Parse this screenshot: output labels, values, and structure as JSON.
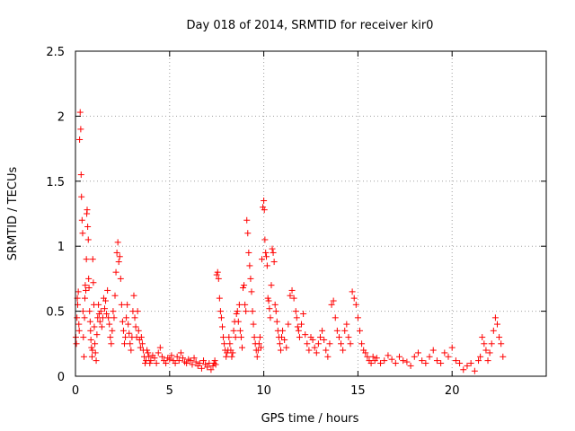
{
  "chart_data": {
    "type": "scatter",
    "title": "Day 018 of 2014, SRMTID for receiver kir0",
    "xlabel": "GPS time / hours",
    "ylabel": "SRMTID / TECUs",
    "xlim": [
      0,
      25
    ],
    "ylim": [
      0,
      2.5
    ],
    "xticks": [
      0,
      5,
      10,
      15,
      20
    ],
    "xtick_labels": [
      "0",
      "5",
      "10",
      "15",
      "20"
    ],
    "yticks": [
      0,
      0.5,
      1,
      1.5,
      2,
      2.5
    ],
    "ytick_labels": [
      "0",
      "0.5",
      "1",
      "1.5",
      "2",
      "2.5"
    ],
    "grid": true,
    "marker": "+",
    "color": "#ff0000",
    "series": [
      {
        "name": "SRMTID",
        "x": [
          0.02,
          0.05,
          0.08,
          0.1,
          0.12,
          0.15,
          0.18,
          0.2,
          0.22,
          0.25,
          0.28,
          0.3,
          0.32,
          0.35,
          0.38,
          0.4,
          0.42,
          0.45,
          0.48,
          0.5,
          0.52,
          0.55,
          0.58,
          0.6,
          0.62,
          0.65,
          0.68,
          0.7,
          0.72,
          0.75,
          0.78,
          0.8,
          0.82,
          0.85,
          0.88,
          0.9,
          0.92,
          0.95,
          0.98,
          1.0,
          1.03,
          1.06,
          1.1,
          1.14,
          1.18,
          1.22,
          1.26,
          1.3,
          1.35,
          1.4,
          1.45,
          1.5,
          1.55,
          1.6,
          1.65,
          1.7,
          1.75,
          1.8,
          1.85,
          1.9,
          1.95,
          2.0,
          2.05,
          2.1,
          2.15,
          2.2,
          2.25,
          2.3,
          2.35,
          2.4,
          2.45,
          2.5,
          2.55,
          2.6,
          2.65,
          2.7,
          2.75,
          2.8,
          2.85,
          2.9,
          2.95,
          3.0,
          3.05,
          3.1,
          3.15,
          3.2,
          3.25,
          3.3,
          3.35,
          3.4,
          3.45,
          3.5,
          3.55,
          3.6,
          3.65,
          3.7,
          3.75,
          3.8,
          3.85,
          3.9,
          3.95,
          4.0,
          4.1,
          4.2,
          4.3,
          4.4,
          4.5,
          4.6,
          4.7,
          4.8,
          4.9,
          5.0,
          5.1,
          5.2,
          5.3,
          5.4,
          5.5,
          5.6,
          5.7,
          5.8,
          5.9,
          6.0,
          6.1,
          6.2,
          6.3,
          6.4,
          6.5,
          6.6,
          6.7,
          6.8,
          6.9,
          7.0,
          7.1,
          7.2,
          7.3,
          7.35,
          7.4,
          7.45,
          7.5,
          7.55,
          7.6,
          7.65,
          7.7,
          7.75,
          7.8,
          7.85,
          7.9,
          7.95,
          8.0,
          8.05,
          8.1,
          8.15,
          8.2,
          8.25,
          8.3,
          8.35,
          8.4,
          8.45,
          8.5,
          8.55,
          8.6,
          8.65,
          8.7,
          8.75,
          8.8,
          8.85,
          8.9,
          8.95,
          9.0,
          9.05,
          9.1,
          9.15,
          9.2,
          9.25,
          9.3,
          9.35,
          9.4,
          9.45,
          9.5,
          9.55,
          9.6,
          9.65,
          9.7,
          9.75,
          9.8,
          9.85,
          9.9,
          9.95,
          10.0,
          10.03,
          10.06,
          10.1,
          10.14,
          10.18,
          10.22,
          10.26,
          10.3,
          10.35,
          10.4,
          10.45,
          10.5,
          10.55,
          10.6,
          10.65,
          10.7,
          10.75,
          10.8,
          10.85,
          10.9,
          10.95,
          11.0,
          11.1,
          11.2,
          11.3,
          11.4,
          11.5,
          11.6,
          11.7,
          11.75,
          11.8,
          11.85,
          11.9,
          12.0,
          12.1,
          12.2,
          12.3,
          12.4,
          12.5,
          12.6,
          12.7,
          12.8,
          12.9,
          13.0,
          13.1,
          13.2,
          13.3,
          13.4,
          13.5,
          13.6,
          13.7,
          13.8,
          13.9,
          14.0,
          14.1,
          14.2,
          14.3,
          14.4,
          14.5,
          14.6,
          14.7,
          14.8,
          14.9,
          15.0,
          15.1,
          15.2,
          15.3,
          15.4,
          15.5,
          15.6,
          15.7,
          15.8,
          15.9,
          16.0,
          16.2,
          16.4,
          16.6,
          16.8,
          17.0,
          17.2,
          17.4,
          17.6,
          17.8,
          18.0,
          18.2,
          18.4,
          18.6,
          18.8,
          19.0,
          19.2,
          19.4,
          19.6,
          19.8,
          20.0,
          20.2,
          20.4,
          20.6,
          20.8,
          21.0,
          21.2,
          21.4,
          21.5,
          21.6,
          21.7,
          21.8,
          21.9,
          22.0,
          22.1,
          22.2,
          22.3,
          22.4,
          22.5,
          22.6,
          22.7
        ],
        "y": [
          0.3,
          0.25,
          0.45,
          0.6,
          0.55,
          0.65,
          0.4,
          0.35,
          1.82,
          2.03,
          1.9,
          1.55,
          1.38,
          1.2,
          1.1,
          0.5,
          0.3,
          0.15,
          0.45,
          0.6,
          0.7,
          0.66,
          0.9,
          1.25,
          1.28,
          1.15,
          1.05,
          0.75,
          0.68,
          0.5,
          0.42,
          0.35,
          0.28,
          0.22,
          0.15,
          0.2,
          0.9,
          0.72,
          0.55,
          0.38,
          0.25,
          0.18,
          0.12,
          0.32,
          0.45,
          0.55,
          0.48,
          0.42,
          0.5,
          0.38,
          0.45,
          0.6,
          0.52,
          0.58,
          0.48,
          0.66,
          0.45,
          0.4,
          0.3,
          0.25,
          0.35,
          0.5,
          0.45,
          0.62,
          0.8,
          0.95,
          1.03,
          0.88,
          0.92,
          0.75,
          0.55,
          0.42,
          0.35,
          0.25,
          0.3,
          0.45,
          0.55,
          0.4,
          0.33,
          0.25,
          0.2,
          0.3,
          0.5,
          0.62,
          0.45,
          0.38,
          0.3,
          0.5,
          0.35,
          0.28,
          0.22,
          0.3,
          0.25,
          0.2,
          0.15,
          0.1,
          0.12,
          0.2,
          0.18,
          0.15,
          0.1,
          0.12,
          0.16,
          0.14,
          0.1,
          0.18,
          0.22,
          0.15,
          0.12,
          0.1,
          0.14,
          0.13,
          0.16,
          0.12,
          0.1,
          0.15,
          0.12,
          0.18,
          0.14,
          0.11,
          0.1,
          0.13,
          0.12,
          0.09,
          0.14,
          0.11,
          0.08,
          0.1,
          0.06,
          0.12,
          0.09,
          0.07,
          0.1,
          0.05,
          0.08,
          0.1,
          0.12,
          0.09,
          0.78,
          0.8,
          0.75,
          0.6,
          0.5,
          0.45,
          0.38,
          0.3,
          0.25,
          0.2,
          0.15,
          0.18,
          0.2,
          0.3,
          0.25,
          0.2,
          0.15,
          0.18,
          0.35,
          0.42,
          0.3,
          0.48,
          0.5,
          0.42,
          0.55,
          0.35,
          0.3,
          0.22,
          0.68,
          0.7,
          0.55,
          0.5,
          1.2,
          1.1,
          0.95,
          0.85,
          0.75,
          0.65,
          0.5,
          0.4,
          0.3,
          0.25,
          0.2,
          0.15,
          0.2,
          0.25,
          0.3,
          0.22,
          0.9,
          1.3,
          1.35,
          1.28,
          1.05,
          0.95,
          0.92,
          0.85,
          0.6,
          0.58,
          0.52,
          0.45,
          0.7,
          0.98,
          0.95,
          0.88,
          0.55,
          0.5,
          0.42,
          0.35,
          0.3,
          0.25,
          0.2,
          0.3,
          0.35,
          0.28,
          0.22,
          0.4,
          0.62,
          0.66,
          0.6,
          0.5,
          0.45,
          0.38,
          0.35,
          0.3,
          0.4,
          0.48,
          0.32,
          0.25,
          0.2,
          0.3,
          0.28,
          0.22,
          0.18,
          0.25,
          0.3,
          0.35,
          0.28,
          0.2,
          0.15,
          0.25,
          0.55,
          0.58,
          0.45,
          0.35,
          0.3,
          0.25,
          0.2,
          0.35,
          0.4,
          0.3,
          0.25,
          0.65,
          0.6,
          0.55,
          0.45,
          0.35,
          0.25,
          0.2,
          0.18,
          0.15,
          0.12,
          0.1,
          0.15,
          0.12,
          0.14,
          0.1,
          0.12,
          0.16,
          0.13,
          0.1,
          0.15,
          0.12,
          0.11,
          0.08,
          0.15,
          0.18,
          0.12,
          0.1,
          0.15,
          0.2,
          0.12,
          0.1,
          0.18,
          0.15,
          0.22,
          0.12,
          0.1,
          0.05,
          0.08,
          0.1,
          0.04,
          0.12,
          0.15,
          0.3,
          0.25,
          0.2,
          0.12,
          0.18,
          0.25,
          0.35,
          0.45,
          0.4,
          0.3,
          0.25,
          0.15
        ]
      }
    ]
  }
}
